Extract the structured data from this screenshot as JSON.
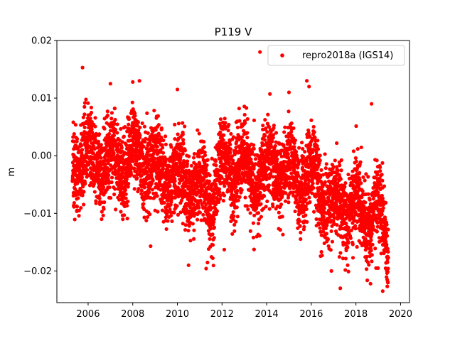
{
  "chart_data": {
    "type": "scatter",
    "title": "P119 V",
    "xlabel": "",
    "ylabel": "m",
    "xlim": [
      2004.6,
      2020.4
    ],
    "ylim": [
      -0.0255,
      0.02
    ],
    "xticks": [
      2006,
      2008,
      2010,
      2012,
      2014,
      2016,
      2018,
      2020
    ],
    "xtick_labels": [
      "2006",
      "2008",
      "2010",
      "2012",
      "2014",
      "2016",
      "2018",
      "2020"
    ],
    "yticks": [
      -0.02,
      -0.01,
      0.0,
      0.01,
      0.02
    ],
    "ytick_labels": [
      "−0.02",
      "−0.01",
      "0.00",
      "0.01",
      "0.02"
    ],
    "grid": false,
    "legend_position": "top-right",
    "series": [
      {
        "name": "repro2018a (IGS14)",
        "color": "#ff0000",
        "marker": "circle",
        "x_range": [
          2005.3,
          2019.45
        ],
        "trend_knots": [
          [
            2005.3,
            -0.001
          ],
          [
            2006.0,
            0.0005
          ],
          [
            2007.0,
            -0.0015
          ],
          [
            2008.0,
            -0.0005
          ],
          [
            2009.0,
            -0.0025
          ],
          [
            2010.0,
            -0.004
          ],
          [
            2011.0,
            -0.006
          ],
          [
            2011.5,
            -0.0075
          ],
          [
            2012.0,
            -0.002
          ],
          [
            2013.0,
            -0.0015
          ],
          [
            2013.5,
            -0.0045
          ],
          [
            2014.0,
            -0.0025
          ],
          [
            2015.0,
            -0.002
          ],
          [
            2015.5,
            -0.0045
          ],
          [
            2016.0,
            -0.0035
          ],
          [
            2016.5,
            -0.006
          ],
          [
            2017.0,
            -0.0095
          ],
          [
            2017.5,
            -0.0085
          ],
          [
            2018.0,
            -0.009
          ],
          [
            2018.5,
            -0.0105
          ],
          [
            2019.0,
            -0.0095
          ],
          [
            2019.45,
            -0.0165
          ]
        ],
        "annual_amplitude": 0.0025,
        "noise_std": 0.0034,
        "n_points": 4600,
        "outliers": [
          [
            2005.75,
            0.0153
          ],
          [
            2007.0,
            0.0125
          ],
          [
            2008.0,
            0.0128
          ],
          [
            2008.3,
            0.013
          ],
          [
            2010.0,
            0.0115
          ],
          [
            2013.7,
            0.018
          ],
          [
            2015.0,
            0.011
          ],
          [
            2015.8,
            0.013
          ],
          [
            2015.9,
            0.012
          ],
          [
            2018.7,
            0.009
          ],
          [
            2005.5,
            -0.0095
          ],
          [
            2008.8,
            -0.0157
          ],
          [
            2010.5,
            -0.019
          ],
          [
            2011.4,
            -0.0162
          ],
          [
            2017.3,
            -0.023
          ],
          [
            2019.2,
            -0.0235
          ],
          [
            2019.4,
            -0.0215
          ],
          [
            2018.9,
            -0.0195
          ],
          [
            2016.9,
            -0.02
          ],
          [
            2012.1,
            -0.0163
          ]
        ]
      }
    ]
  }
}
